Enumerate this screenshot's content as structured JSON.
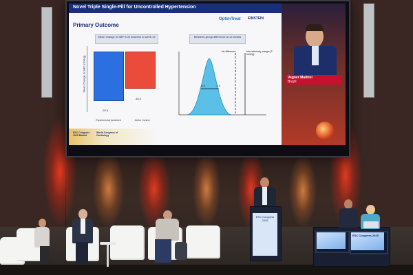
{
  "slide": {
    "title": "Novel Triple Single-Pill for Uncontrolled Hypertension",
    "section": "Primary Outcome",
    "logo_left": "OptimTreat",
    "logo_right": "EINSTEIN",
    "bar_caption": "Mean change in SBP from baseline to week 12",
    "dist_caption": "Between-group difference at 12 weeks",
    "y_axis_label": "Mean Change in SBP (mmHg)",
    "bar_values": [
      "-22.6",
      "-16.2"
    ],
    "bar_categories": [
      "Experimental treatment",
      "Active Control"
    ],
    "no_diff_label": "No difference",
    "margin_label": "Non-inferiority margin (2 mmHg)",
    "ci_labels": [
      "-4.4",
      "-2.5"
    ],
    "footer_left": "ESC Congress 2025 Madrid",
    "footer_mid": "World Congress of Cardiology",
    "bar_colors": [
      "#2b6fe0",
      "#ea4b3a"
    ]
  },
  "speaker_video": {
    "name_tag": "Vagner Madrini",
    "country": "Brazil"
  },
  "stage": {
    "podium_text": "ESC Congress 2025",
    "monitor_text": "ESC Congress 2025"
  }
}
